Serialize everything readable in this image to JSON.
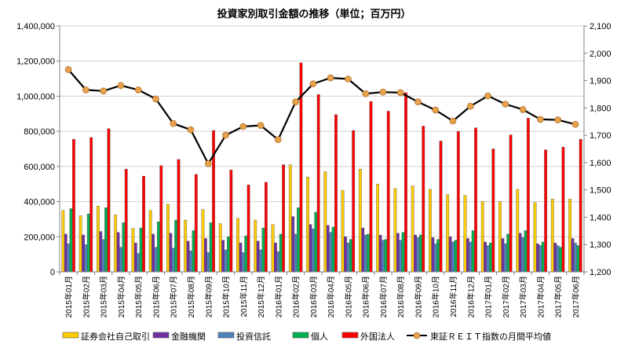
{
  "chart_data": {
    "type": "bar",
    "title": "投資家別取引金額の推移（単位；百万円）",
    "categories": [
      "2015年01月",
      "2015年02月",
      "2015年03月",
      "2015年04月",
      "2015年05月",
      "2015年06月",
      "2015年07月",
      "2015年08月",
      "2015年09月",
      "2015年10月",
      "2015年11月",
      "2015年12月",
      "2016年01月",
      "2016年02月",
      "2016年03月",
      "2016年04月",
      "2016年05月",
      "2016年06月",
      "2016年07月",
      "2016年08月",
      "2016年09月",
      "2016年10月",
      "2016年11月",
      "2016年12月",
      "2017年01月",
      "2017年02月",
      "2017年03月",
      "2017年04月",
      "2017年05月",
      "2017年06月"
    ],
    "y_left": {
      "min": 0,
      "max": 1400000,
      "step": 200000,
      "tick_labels": [
        "0",
        "200,000",
        "400,000",
        "600,000",
        "800,000",
        "1,000,000",
        "1,200,000",
        "1,400,000"
      ]
    },
    "y_right": {
      "min": 1200,
      "max": 2100,
      "step": 100,
      "tick_labels": [
        "1,200",
        "1,300",
        "1,400",
        "1,500",
        "1,600",
        "1,700",
        "1,800",
        "1,900",
        "2,000",
        "2,100"
      ]
    },
    "grid": true,
    "legend_position": "bottom",
    "series": [
      {
        "name": "証券会社自己取引",
        "kind": "bar",
        "axis": "left",
        "color": "#ffcc00",
        "values": [
          350000,
          320000,
          375000,
          325000,
          248000,
          350000,
          385000,
          295000,
          355000,
          275000,
          305000,
          295000,
          270000,
          610000,
          540000,
          570000,
          465000,
          585000,
          500000,
          475000,
          490000,
          470000,
          440000,
          435000,
          400000,
          400000,
          470000,
          395000,
          415000,
          415000
        ]
      },
      {
        "name": "金融機関",
        "kind": "bar",
        "axis": "left",
        "color": "#7030a0",
        "values": [
          215000,
          210000,
          230000,
          225000,
          165000,
          215000,
          220000,
          175000,
          190000,
          180000,
          165000,
          175000,
          165000,
          315000,
          270000,
          265000,
          200000,
          250000,
          210000,
          220000,
          210000,
          195000,
          200000,
          190000,
          170000,
          190000,
          220000,
          160000,
          165000,
          190000
        ]
      },
      {
        "name": "投資信託",
        "kind": "bar",
        "axis": "left",
        "color": "#4f81bd",
        "values": [
          160000,
          155000,
          185000,
          140000,
          105000,
          140000,
          135000,
          120000,
          110000,
          125000,
          110000,
          125000,
          115000,
          215000,
          245000,
          225000,
          165000,
          210000,
          180000,
          180000,
          195000,
          160000,
          170000,
          170000,
          150000,
          160000,
          195000,
          150000,
          150000,
          165000
        ]
      },
      {
        "name": "個人",
        "kind": "bar",
        "axis": "left",
        "color": "#00b050",
        "values": [
          360000,
          330000,
          365000,
          280000,
          250000,
          285000,
          295000,
          235000,
          280000,
          200000,
          205000,
          250000,
          215000,
          365000,
          340000,
          255000,
          185000,
          215000,
          185000,
          225000,
          210000,
          185000,
          180000,
          235000,
          165000,
          215000,
          235000,
          170000,
          140000,
          150000
        ]
      },
      {
        "name": "外国法人",
        "kind": "bar",
        "axis": "left",
        "color": "#ff0000",
        "values": [
          755000,
          765000,
          815000,
          585000,
          545000,
          605000,
          640000,
          555000,
          805000,
          580000,
          495000,
          510000,
          610000,
          1190000,
          1010000,
          895000,
          805000,
          970000,
          915000,
          1020000,
          830000,
          745000,
          800000,
          820000,
          700000,
          780000,
          875000,
          695000,
          710000,
          755000
        ]
      },
      {
        "name": "東証ＲＥＩＴ指数の月間平均値",
        "kind": "line",
        "axis": "right",
        "color": "#000000",
        "marker_color": "#e8a04a",
        "values": [
          1940,
          1866,
          1862,
          1882,
          1866,
          1833,
          1743,
          1720,
          1596,
          1700,
          1732,
          1736,
          1684,
          1822,
          1888,
          1910,
          1906,
          1852,
          1858,
          1856,
          1822,
          1792,
          1752,
          1806,
          1844,
          1814,
          1794,
          1758,
          1756,
          1740
        ]
      }
    ]
  }
}
